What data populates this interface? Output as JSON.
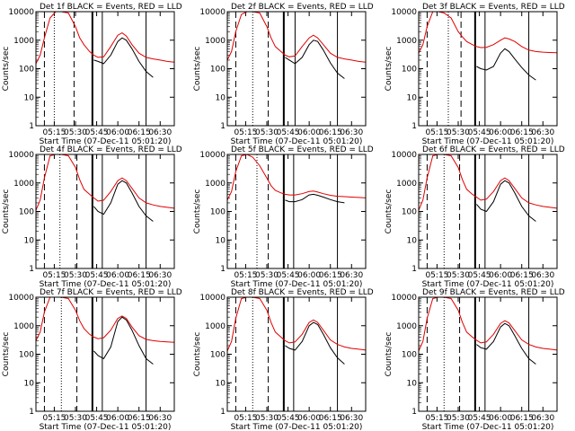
{
  "chart_data": {
    "type": "line",
    "xlabel": "Start Time (07-Dec-11 05:01:20)",
    "ylabel": "Counts/sec",
    "y_scale": "log",
    "ylim": [
      1,
      10000
    ],
    "xlim": [
      "05:02",
      "06:40"
    ],
    "x_ticks": [
      "05:15",
      "05:30",
      "05:45",
      "06:00",
      "06:15",
      "06:30"
    ],
    "y_ticks": [
      "1",
      "10",
      "100",
      "1000",
      "10000"
    ],
    "colors": {
      "events": "#000000",
      "lld": "#e00000"
    },
    "panels": [
      {
        "title": "Det 1f BLACK = Events, RED = LLD",
        "dashed": [
          "05:08",
          "05:29"
        ],
        "dotted": [
          "05:15"
        ],
        "solid": [
          "05:42",
          "05:49",
          "06:20"
        ],
        "x": [
          "05:02",
          "05:05",
          "05:08",
          "05:12",
          "05:16",
          "05:20",
          "05:25",
          "05:30",
          "05:33",
          "05:36",
          "05:40",
          "05:43",
          "05:46",
          "05:50",
          "05:55",
          "06:00",
          "06:03",
          "06:06",
          "06:10",
          "06:15",
          "06:20",
          "06:25",
          "06:30",
          "06:35",
          "06:40"
        ],
        "lld": [
          150,
          300,
          1200,
          6000,
          10000,
          10000,
          9000,
          3000,
          1200,
          700,
          400,
          300,
          250,
          260,
          600,
          1500,
          1800,
          1400,
          700,
          350,
          250,
          220,
          200,
          180,
          170
        ],
        "events": [
          null,
          null,
          null,
          null,
          null,
          null,
          null,
          null,
          null,
          null,
          null,
          200,
          180,
          150,
          300,
          900,
          1200,
          1000,
          500,
          180,
          80,
          50,
          null,
          null,
          null
        ]
      },
      {
        "title": "Det 2f BLACK = Events, RED = LLD",
        "dashed": [
          "05:08",
          "05:31"
        ],
        "dotted": [
          "05:20"
        ],
        "solid": [
          "05:42",
          "05:50",
          "06:20"
        ],
        "x": [
          "05:02",
          "05:05",
          "05:08",
          "05:12",
          "05:16",
          "05:20",
          "05:25",
          "05:30",
          "05:33",
          "05:36",
          "05:40",
          "05:43",
          "05:46",
          "05:50",
          "05:55",
          "06:00",
          "06:03",
          "06:06",
          "06:10",
          "06:15",
          "06:20",
          "06:25",
          "06:30",
          "06:35",
          "06:40"
        ],
        "lld": [
          200,
          400,
          2000,
          8000,
          10000,
          10000,
          9000,
          3000,
          1200,
          600,
          400,
          300,
          260,
          280,
          600,
          1200,
          1500,
          1200,
          700,
          350,
          250,
          220,
          200,
          180,
          170
        ],
        "events": [
          null,
          null,
          null,
          null,
          null,
          null,
          null,
          null,
          null,
          null,
          null,
          250,
          200,
          150,
          250,
          700,
          1000,
          900,
          450,
          160,
          70,
          45,
          null,
          null,
          null
        ]
      },
      {
        "title": "Det 3f BLACK = Events, RED = LLD",
        "dashed": [
          "05:08",
          "05:32"
        ],
        "dotted": [
          "05:23"
        ],
        "solid": [
          "05:42",
          "05:49",
          "06:20"
        ],
        "x": [
          "05:02",
          "05:05",
          "05:08",
          "05:12",
          "05:16",
          "05:20",
          "05:25",
          "05:30",
          "05:33",
          "05:36",
          "05:40",
          "05:43",
          "05:46",
          "05:50",
          "05:55",
          "06:00",
          "06:03",
          "06:06",
          "06:10",
          "06:15",
          "06:20",
          "06:25",
          "06:30",
          "06:35",
          "06:40"
        ],
        "lld": [
          350,
          700,
          3000,
          10000,
          10000,
          9000,
          6000,
          2000,
          1300,
          900,
          700,
          600,
          550,
          560,
          700,
          1000,
          1200,
          1100,
          900,
          600,
          450,
          400,
          380,
          370,
          360
        ],
        "events": [
          null,
          null,
          null,
          null,
          null,
          null,
          null,
          null,
          null,
          null,
          null,
          120,
          100,
          90,
          120,
          350,
          500,
          400,
          220,
          110,
          60,
          40,
          null,
          null,
          null
        ]
      },
      {
        "title": "Det 4f BLACK = Events, RED = LLD",
        "dashed": [
          "05:08",
          "05:31"
        ],
        "dotted": [
          "05:19"
        ],
        "solid": [
          "05:42",
          "05:49",
          "06:20"
        ],
        "x": [
          "05:02",
          "05:05",
          "05:08",
          "05:12",
          "05:16",
          "05:20",
          "05:25",
          "05:30",
          "05:33",
          "05:36",
          "05:40",
          "05:43",
          "05:46",
          "05:50",
          "05:55",
          "06:00",
          "06:03",
          "06:06",
          "06:10",
          "06:15",
          "06:20",
          "06:25",
          "06:30",
          "06:35",
          "06:40"
        ],
        "lld": [
          110,
          250,
          1500,
          9000,
          10000,
          10000,
          9000,
          3500,
          1300,
          600,
          400,
          300,
          230,
          250,
          500,
          1200,
          1500,
          1200,
          650,
          300,
          200,
          170,
          150,
          140,
          130
        ],
        "events": [
          null,
          null,
          null,
          null,
          null,
          null,
          null,
          null,
          null,
          null,
          null,
          150,
          100,
          80,
          200,
          900,
          1200,
          1000,
          450,
          150,
          70,
          45,
          null,
          null,
          null
        ]
      },
      {
        "title": "Det 5f BLACK = Events, RED = LLD",
        "dashed": [
          "05:08",
          "05:31"
        ],
        "dotted": [
          "05:23"
        ],
        "solid": [
          "05:42",
          "05:49",
          "06:20"
        ],
        "x": [
          "05:02",
          "05:05",
          "05:08",
          "05:12",
          "05:16",
          "05:20",
          "05:25",
          "05:30",
          "05:33",
          "05:36",
          "05:40",
          "05:43",
          "05:46",
          "05:50",
          "05:55",
          "06:00",
          "06:03",
          "06:06",
          "06:10",
          "06:15",
          "06:20",
          "06:25",
          "06:30",
          "06:35",
          "06:40"
        ],
        "lld": [
          250,
          500,
          2500,
          9000,
          10000,
          8000,
          4000,
          1500,
          800,
          550,
          450,
          400,
          380,
          380,
          420,
          500,
          520,
          480,
          420,
          370,
          340,
          330,
          320,
          310,
          300
        ],
        "events": [
          null,
          null,
          null,
          null,
          null,
          null,
          null,
          null,
          null,
          null,
          null,
          250,
          220,
          220,
          260,
          380,
          400,
          370,
          320,
          260,
          220,
          200,
          null,
          null,
          null
        ]
      },
      {
        "title": "Det 6f BLACK = Events, RED = LLD",
        "dashed": [
          "05:08",
          "05:31"
        ],
        "dotted": [
          "05:20"
        ],
        "solid": [
          "05:42",
          "05:49",
          "06:20"
        ],
        "x": [
          "05:02",
          "05:05",
          "05:08",
          "05:12",
          "05:16",
          "05:20",
          "05:25",
          "05:30",
          "05:33",
          "05:36",
          "05:40",
          "05:43",
          "05:46",
          "05:50",
          "05:55",
          "06:00",
          "06:03",
          "06:06",
          "06:10",
          "06:15",
          "06:20",
          "06:25",
          "06:30",
          "06:35",
          "06:40"
        ],
        "lld": [
          110,
          250,
          1500,
          9000,
          10000,
          10000,
          9000,
          3500,
          1300,
          600,
          400,
          320,
          250,
          270,
          500,
          1200,
          1500,
          1200,
          650,
          300,
          200,
          170,
          150,
          140,
          130
        ],
        "events": [
          null,
          null,
          null,
          null,
          null,
          null,
          null,
          null,
          null,
          null,
          null,
          180,
          120,
          100,
          220,
          900,
          1200,
          1000,
          450,
          150,
          70,
          45,
          null,
          null,
          null
        ]
      },
      {
        "title": "Det 7f BLACK = Events, RED = LLD",
        "dashed": [
          "05:08",
          "05:31"
        ],
        "dotted": [
          "05:20"
        ],
        "solid": [
          "05:42",
          "05:49",
          "06:20"
        ],
        "x": [
          "05:02",
          "05:05",
          "05:08",
          "05:12",
          "05:16",
          "05:20",
          "05:25",
          "05:30",
          "05:33",
          "05:36",
          "05:40",
          "05:43",
          "05:46",
          "05:50",
          "05:55",
          "06:00",
          "06:03",
          "06:06",
          "06:10",
          "06:15",
          "06:20",
          "06:25",
          "06:30",
          "06:35",
          "06:40"
        ],
        "lld": [
          300,
          600,
          3000,
          10000,
          10000,
          10000,
          9000,
          3500,
          1500,
          800,
          500,
          400,
          350,
          380,
          700,
          1800,
          2200,
          1800,
          900,
          450,
          330,
          300,
          280,
          270,
          260
        ],
        "events": [
          null,
          null,
          null,
          null,
          null,
          null,
          null,
          null,
          null,
          null,
          null,
          130,
          90,
          70,
          180,
          1400,
          2000,
          1600,
          700,
          200,
          70,
          45,
          null,
          null,
          null
        ]
      },
      {
        "title": "Det 8f BLACK = Events, RED = LLD",
        "dashed": [
          "05:08",
          "05:31"
        ],
        "dotted": [
          "05:20"
        ],
        "solid": [
          "05:42",
          "05:49",
          "06:20"
        ],
        "x": [
          "05:02",
          "05:05",
          "05:08",
          "05:12",
          "05:16",
          "05:20",
          "05:25",
          "05:30",
          "05:33",
          "05:36",
          "05:40",
          "05:43",
          "05:46",
          "05:50",
          "05:55",
          "06:00",
          "06:03",
          "06:06",
          "06:10",
          "06:15",
          "06:20",
          "06:25",
          "06:30",
          "06:35",
          "06:40"
        ],
        "lld": [
          130,
          280,
          1800,
          9000,
          10000,
          10000,
          9000,
          3500,
          1300,
          600,
          400,
          300,
          250,
          270,
          500,
          1300,
          1600,
          1300,
          700,
          320,
          220,
          180,
          160,
          150,
          140
        ],
        "events": [
          null,
          null,
          null,
          null,
          null,
          null,
          null,
          null,
          null,
          null,
          null,
          200,
          160,
          140,
          280,
          1000,
          1300,
          1100,
          500,
          170,
          75,
          45,
          null,
          null,
          null
        ]
      },
      {
        "title": "Det 9f BLACK = Events, RED = LLD",
        "dashed": [
          "05:08",
          "05:31"
        ],
        "dotted": [
          "05:20"
        ],
        "solid": [
          "05:42",
          "05:49",
          "06:20"
        ],
        "x": [
          "05:02",
          "05:05",
          "05:08",
          "05:12",
          "05:16",
          "05:20",
          "05:25",
          "05:30",
          "05:33",
          "05:36",
          "05:40",
          "05:43",
          "05:46",
          "05:50",
          "05:55",
          "06:00",
          "06:03",
          "06:06",
          "06:10",
          "06:15",
          "06:20",
          "06:25",
          "06:30",
          "06:35",
          "06:40"
        ],
        "lld": [
          130,
          280,
          1800,
          9000,
          10000,
          10000,
          9000,
          3500,
          1300,
          600,
          400,
          310,
          250,
          270,
          500,
          1200,
          1500,
          1250,
          680,
          320,
          220,
          180,
          160,
          150,
          140
        ],
        "events": [
          null,
          null,
          null,
          null,
          null,
          null,
          null,
          null,
          null,
          null,
          null,
          220,
          170,
          150,
          280,
          900,
          1200,
          1000,
          450,
          160,
          70,
          45,
          null,
          null,
          null
        ]
      }
    ]
  }
}
